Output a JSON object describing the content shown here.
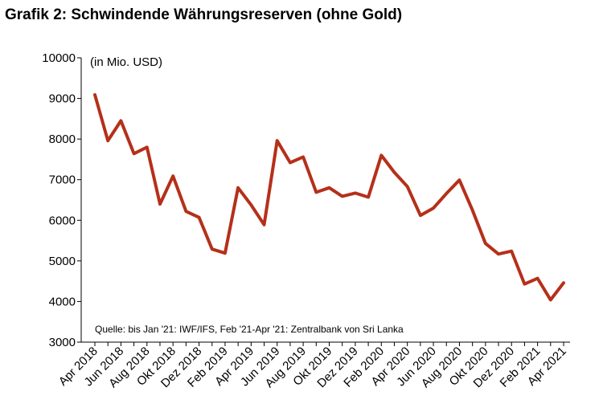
{
  "title": "Grafik 2: Schwindende Währungsreserven (ohne Gold)",
  "unit_label": "(in Mio. USD)",
  "source": "Quelle: bis Jan '21: IWF/IFS, Feb '21-Apr '21: Zentralbank von Sri Lanka",
  "colors": {
    "line": "#b5301a",
    "axis": "#000000"
  },
  "chart_data": {
    "type": "line",
    "title": "Grafik 2: Schwindende Währungsreserven (ohne Gold)",
    "ylabel": "(in Mio. USD)",
    "xlabel": "",
    "ylim": [
      3000,
      10000
    ],
    "yticks": [
      3000,
      4000,
      5000,
      6000,
      7000,
      8000,
      9000,
      10000
    ],
    "grid": false,
    "legend": "none",
    "x": [
      "Apr 2018",
      "Mai 2018",
      "Jun 2018",
      "Jul 2018",
      "Aug 2018",
      "Sep 2018",
      "Okt 2018",
      "Nov 2018",
      "Dez 2018",
      "Jan 2019",
      "Feb 2019",
      "Mär 2019",
      "Apr 2019",
      "Mai 2019",
      "Jun 2019",
      "Jul 2019",
      "Aug 2019",
      "Sep 2019",
      "Okt 2019",
      "Nov 2019",
      "Dez 2019",
      "Jan 2020",
      "Feb 2020",
      "Mär 2020",
      "Apr 2020",
      "Mai 2020",
      "Jun 2020",
      "Jul 2020",
      "Aug 2020",
      "Sep 2020",
      "Okt 2020",
      "Nov 2020",
      "Dez 2020",
      "Jan 2021",
      "Feb 2021",
      "Mär 2021",
      "Apr 2021"
    ],
    "xtick_labels": [
      "Apr 2018",
      "Jun 2018",
      "Aug 2018",
      "Okt 2018",
      "Dez 2018",
      "Feb 2019",
      "Apr 2019",
      "Jun 2019",
      "Aug 2019",
      "Okt 2019",
      "Dez 2019",
      "Feb 2020",
      "Apr 2020",
      "Jun 2020",
      "Aug 2020",
      "Okt 2020",
      "Dez 2020",
      "Feb 2021",
      "Apr 2021"
    ],
    "series": [
      {
        "values": [
          9090,
          7960,
          8450,
          7640,
          7800,
          6400,
          7090,
          6220,
          6070,
          5290,
          5190,
          6800,
          6380,
          5890,
          7960,
          7420,
          7560,
          6690,
          6800,
          6590,
          6670,
          6570,
          7600,
          7180,
          6830,
          6120,
          6300,
          6660,
          6990,
          6250,
          5430,
          5170,
          5240,
          4430,
          4570,
          4040,
          4460
        ]
      }
    ]
  }
}
